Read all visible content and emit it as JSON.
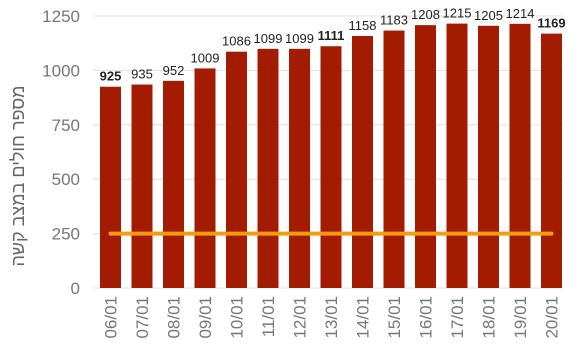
{
  "colors": {
    "bar": "#a31b00",
    "threshold_line": "#f39c12",
    "gridline": "#e0e0e0",
    "axis_text": "#777777"
  },
  "chart_data": {
    "type": "bar",
    "ylabel": "מספר חולים במצב קשה",
    "ylim": [
      0,
      1250
    ],
    "y_ticks": [
      0,
      250,
      500,
      750,
      1000,
      1250
    ],
    "grid": true,
    "categories": [
      "06/01",
      "07/01",
      "08/01",
      "09/01",
      "10/01",
      "11/01",
      "12/01",
      "13/01",
      "14/01",
      "15/01",
      "16/01",
      "17/01",
      "18/01",
      "19/01",
      "20/01"
    ],
    "values": [
      925,
      935,
      952,
      1009,
      1086,
      1099,
      1099,
      1111,
      1158,
      1183,
      1208,
      1215,
      1205,
      1214,
      1169
    ],
    "bold_labels": [
      "06/01",
      "13/01",
      "20/01"
    ],
    "reference_line": {
      "y": 250
    }
  }
}
